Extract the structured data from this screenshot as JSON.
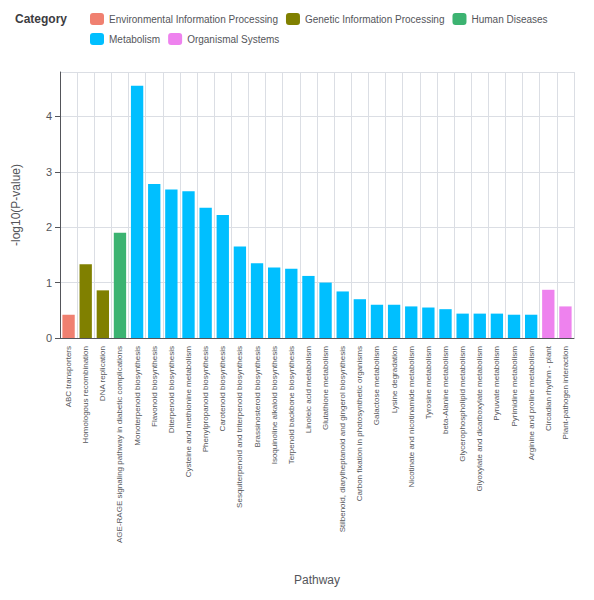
{
  "chart_data": {
    "type": "bar",
    "xlabel": "Pathway",
    "ylabel": "-log10(P-value)",
    "legend_title": "Category",
    "categories": [
      "ABC transporters",
      "Homologous recombination",
      "DNA replication",
      "AGE-RAGE signaling pathway in diabetic complications",
      "Monoterpenoid biosynthesis",
      "Flavonoid biosynthesis",
      "Diterpenoid biosynthesis",
      "Cysteine and methionine metabolism",
      "Phenylpropanoid biosynthesis",
      "Carotenoid biosynthesis",
      "Sesquiterpenoid and triterpenoid biosynthesis",
      "Brassinosteroid biosynthesis",
      "Isoquinoline alkaloid biosynthesis",
      "Terpenoid backbone biosynthesis",
      "Linoleic acid metabolism",
      "Glutathione metabolism",
      "Stilbenoid, diarylheptanoid and gingerol biosynthesis",
      "Carbon fixation in photosynthetic organisms",
      "Galactose metabolism",
      "Lysine degradation",
      "Nicotinate and nicotinamide metabolism",
      "Tyrosine metabolism",
      "beta-Alanine metabolism",
      "Glycerophospholipid metabolism",
      "Glyoxylate and dicarboxylate metabolism",
      "Pyruvate metabolism",
      "Pyrimidine metabolism",
      "Arginine and proline metabolism",
      "Circadian rhythm - plant",
      "Plant-pathogen interaction"
    ],
    "series": [
      {
        "name": "Environmental Information Processing",
        "color": "#F08070",
        "values": [
          0.42,
          null,
          null,
          null,
          null,
          null,
          null,
          null,
          null,
          null,
          null,
          null,
          null,
          null,
          null,
          null,
          null,
          null,
          null,
          null,
          null,
          null,
          null,
          null,
          null,
          null,
          null,
          null,
          null,
          null
        ]
      },
      {
        "name": "Genetic Information Processing",
        "color": "#808000",
        "values": [
          null,
          1.33,
          0.86,
          null,
          null,
          null,
          null,
          null,
          null,
          null,
          null,
          null,
          null,
          null,
          null,
          null,
          null,
          null,
          null,
          null,
          null,
          null,
          null,
          null,
          null,
          null,
          null,
          null,
          null,
          null
        ]
      },
      {
        "name": "Human Diseases",
        "color": "#3CB371",
        "values": [
          null,
          null,
          null,
          1.9,
          null,
          null,
          null,
          null,
          null,
          null,
          null,
          null,
          null,
          null,
          null,
          null,
          null,
          null,
          null,
          null,
          null,
          null,
          null,
          null,
          null,
          null,
          null,
          null,
          null,
          null
        ]
      },
      {
        "name": "Metabolism",
        "color": "#00BFFF",
        "values": [
          null,
          null,
          null,
          null,
          4.55,
          2.78,
          2.68,
          2.65,
          2.35,
          2.22,
          1.65,
          1.35,
          1.27,
          1.25,
          1.12,
          1.0,
          0.84,
          0.7,
          0.6,
          0.6,
          0.57,
          0.55,
          0.52,
          0.44,
          0.44,
          0.44,
          0.42,
          0.42,
          null,
          null
        ]
      },
      {
        "name": "Organismal Systems",
        "color": "#EE82EE",
        "values": [
          null,
          null,
          null,
          null,
          null,
          null,
          null,
          null,
          null,
          null,
          null,
          null,
          null,
          null,
          null,
          null,
          null,
          null,
          null,
          null,
          null,
          null,
          null,
          null,
          null,
          null,
          null,
          null,
          0.87,
          0.57
        ]
      }
    ],
    "stacked": true,
    "ylim": [
      0,
      4.8
    ],
    "yticks": [
      0,
      1,
      2,
      3,
      4
    ],
    "grid": true,
    "legend": "top"
  }
}
